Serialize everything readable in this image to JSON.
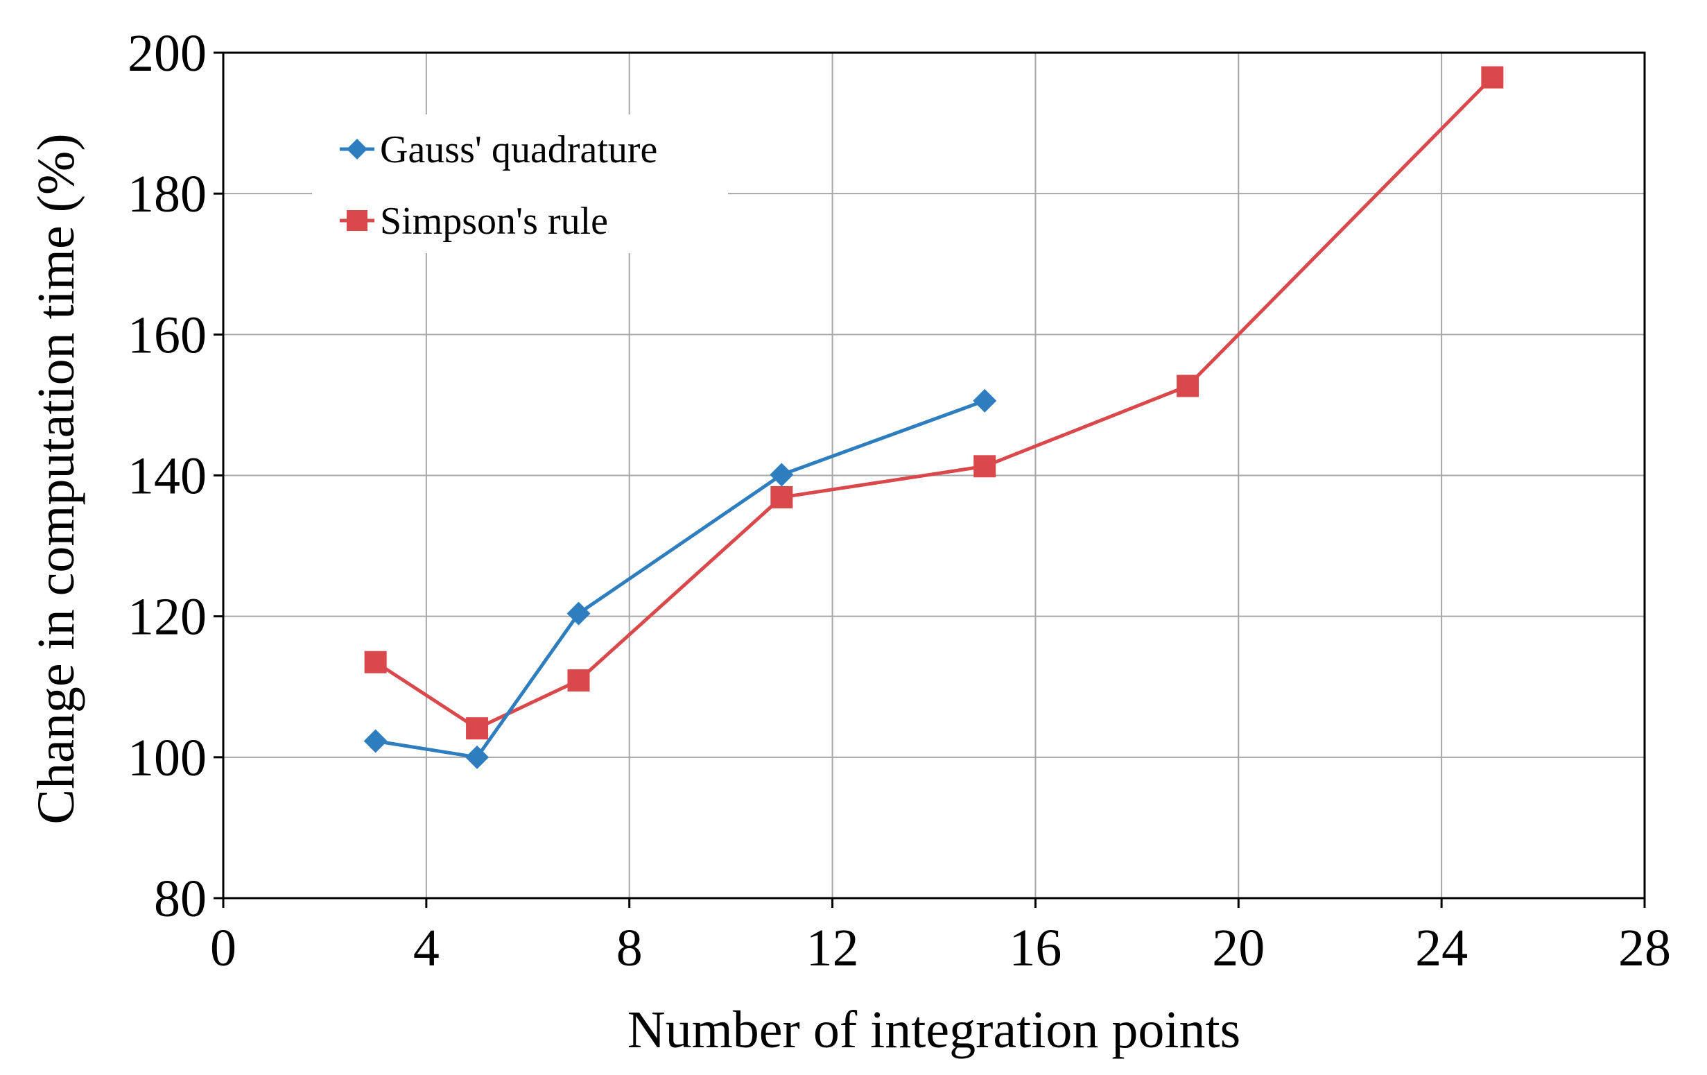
{
  "chart_data": {
    "type": "line",
    "title": "",
    "xlabel": "Number of integration points",
    "ylabel": "Change in computation time (%)",
    "xlim": [
      0,
      28
    ],
    "ylim": [
      80,
      200
    ],
    "x_ticks": [
      0,
      4,
      8,
      12,
      16,
      20,
      24,
      28
    ],
    "y_ticks": [
      80,
      100,
      120,
      140,
      160,
      180,
      200
    ],
    "grid": true,
    "legend_position": "top-left",
    "series": [
      {
        "name": "Gauss' quadrature",
        "color": "#2e7ebf",
        "marker": "diamond",
        "x": [
          3,
          5,
          7,
          11,
          15
        ],
        "y": [
          102.3,
          100.0,
          120.4,
          140.1,
          150.6
        ]
      },
      {
        "name": "Simpson's rule",
        "color": "#d9484a",
        "marker": "square",
        "x": [
          3,
          5,
          7,
          11,
          15,
          19,
          25
        ],
        "y": [
          113.5,
          104.1,
          110.9,
          136.9,
          141.3,
          152.7,
          196.5
        ]
      }
    ]
  }
}
